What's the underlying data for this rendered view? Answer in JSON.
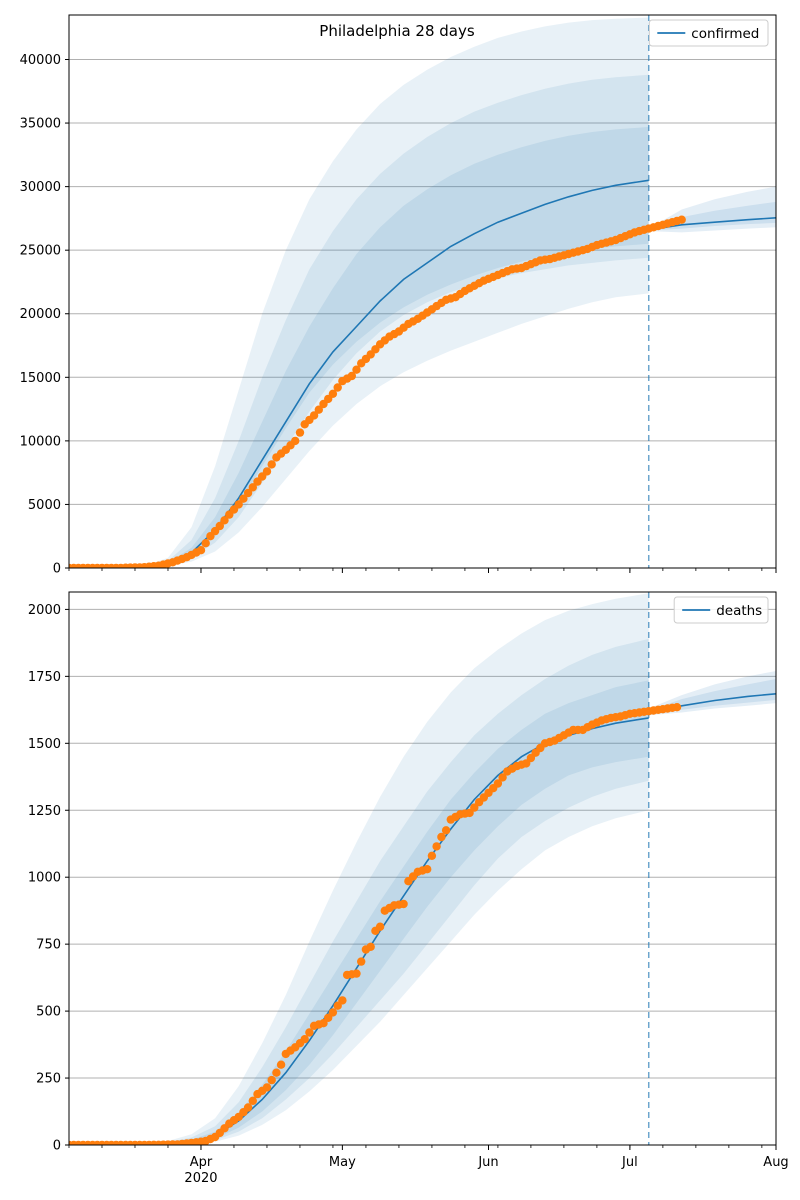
{
  "title": "Philadelphia 28 days",
  "colors": {
    "model": "#1f77b4",
    "observed": "#ff7f0e",
    "band": "#1f77b4",
    "grid": "#b0b0b0"
  },
  "x_axis": {
    "start": "2020-03-04",
    "end": "2020-08-01",
    "forecast_start": "2020-07-05",
    "month_ticks": [
      {
        "date": "2020-04-01",
        "label": "Apr",
        "sublabel": "2020"
      },
      {
        "date": "2020-05-01",
        "label": "May",
        "sublabel": ""
      },
      {
        "date": "2020-06-01",
        "label": "Jun",
        "sublabel": ""
      },
      {
        "date": "2020-07-01",
        "label": "Jul",
        "sublabel": ""
      },
      {
        "date": "2020-08-01",
        "label": "Aug",
        "sublabel": ""
      }
    ]
  },
  "chart_data": [
    {
      "type": "line",
      "legend": "confirmed",
      "legend_position": "top-right",
      "grid": "y",
      "ylim": [
        0,
        43500
      ],
      "yticks": [
        0,
        5000,
        10000,
        15000,
        20000,
        25000,
        30000,
        35000,
        40000
      ],
      "model_median": [
        [
          "2020-03-04",
          10
        ],
        [
          "2020-03-20",
          80
        ],
        [
          "2020-03-25",
          350
        ],
        [
          "2020-03-30",
          1200
        ],
        [
          "2020-04-04",
          3000
        ],
        [
          "2020-04-09",
          5500
        ],
        [
          "2020-04-14",
          8500
        ],
        [
          "2020-04-19",
          11500
        ],
        [
          "2020-04-24",
          14500
        ],
        [
          "2020-04-29",
          17000
        ],
        [
          "2020-05-04",
          19000
        ],
        [
          "2020-05-09",
          21000
        ],
        [
          "2020-05-14",
          22700
        ],
        [
          "2020-05-19",
          24000
        ],
        [
          "2020-05-24",
          25300
        ],
        [
          "2020-05-29",
          26300
        ],
        [
          "2020-06-03",
          27200
        ],
        [
          "2020-06-08",
          27900
        ],
        [
          "2020-06-13",
          28600
        ],
        [
          "2020-06-18",
          29200
        ],
        [
          "2020-06-23",
          29700
        ],
        [
          "2020-06-28",
          30100
        ],
        [
          "2020-07-05",
          30500
        ]
      ],
      "forecast_median": [
        [
          "2020-07-05",
          26600
        ],
        [
          "2020-07-12",
          27000
        ],
        [
          "2020-07-19",
          27200
        ],
        [
          "2020-07-26",
          27400
        ],
        [
          "2020-08-01",
          27550
        ]
      ],
      "fit_bands": {
        "dates": [
          "2020-03-04",
          "2020-03-20",
          "2020-03-25",
          "2020-03-30",
          "2020-04-04",
          "2020-04-09",
          "2020-04-14",
          "2020-04-19",
          "2020-04-24",
          "2020-04-29",
          "2020-05-04",
          "2020-05-09",
          "2020-05-14",
          "2020-05-19",
          "2020-05-24",
          "2020-05-29",
          "2020-06-03",
          "2020-06-08",
          "2020-06-13",
          "2020-06-18",
          "2020-06-23",
          "2020-06-28",
          "2020-07-05"
        ],
        "outer_upper": [
          20,
          150,
          800,
          3200,
          8000,
          14000,
          20000,
          25000,
          29000,
          32000,
          34500,
          36500,
          38000,
          39200,
          40200,
          41000,
          41700,
          42200,
          42600,
          42900,
          43100,
          43200,
          43300
        ],
        "outer_lower": [
          5,
          40,
          150,
          500,
          1300,
          2800,
          4800,
          7000,
          9200,
          11200,
          12900,
          14300,
          15400,
          16300,
          17100,
          17800,
          18500,
          19200,
          19800,
          20400,
          20900,
          21300,
          21600
        ],
        "middle_upper": [
          15,
          110,
          550,
          2200,
          5500,
          10000,
          15000,
          19500,
          23500,
          26500,
          29000,
          31000,
          32600,
          33900,
          35000,
          35900,
          36600,
          37200,
          37700,
          38100,
          38400,
          38600,
          38800
        ],
        "middle_lower": [
          8,
          55,
          230,
          800,
          2000,
          4000,
          6700,
          9500,
          12300,
          14800,
          16900,
          18600,
          19900,
          20900,
          21700,
          22300,
          22800,
          23200,
          23500,
          23800,
          24000,
          24200,
          24400
        ],
        "inner_upper": [
          12,
          90,
          420,
          1600,
          4000,
          7500,
          11500,
          15500,
          19000,
          22000,
          24700,
          26800,
          28500,
          29800,
          30900,
          31800,
          32500,
          33100,
          33600,
          34000,
          34300,
          34500,
          34700
        ],
        "inner_lower": [
          9,
          65,
          290,
          1000,
          2500,
          5000,
          8000,
          11000,
          13800,
          16000,
          17800,
          19300,
          20500,
          21500,
          22300,
          23000,
          23600,
          24100,
          24500,
          24800,
          25100,
          25300,
          25500
        ]
      },
      "forecast_bands": {
        "dates": [
          "2020-07-05",
          "2020-07-12",
          "2020-07-19",
          "2020-07-26",
          "2020-08-01"
        ],
        "outer_upper": [
          26700,
          28200,
          29000,
          29600,
          30000
        ],
        "outer_lower": [
          26500,
          26400,
          26550,
          26700,
          26800
        ],
        "inner_upper": [
          26650,
          27600,
          28100,
          28500,
          28800
        ],
        "inner_lower": [
          26550,
          26700,
          26900,
          27050,
          27150
        ]
      },
      "observed": [
        [
          "2020-03-04",
          0
        ],
        [
          "2020-03-10",
          0
        ],
        [
          "2020-03-15",
          10
        ],
        [
          "2020-03-20",
          60
        ],
        [
          "2020-03-23",
          180
        ],
        [
          "2020-03-26",
          450
        ],
        [
          "2020-03-29",
          850
        ],
        [
          "2020-04-01",
          1400
        ],
        [
          "2020-04-03",
          2500
        ],
        [
          "2020-04-05",
          3300
        ],
        [
          "2020-04-07",
          4200
        ],
        [
          "2020-04-09",
          5000
        ],
        [
          "2020-04-11",
          5900
        ],
        [
          "2020-04-13",
          6800
        ],
        [
          "2020-04-15",
          7600
        ],
        [
          "2020-04-17",
          8700
        ],
        [
          "2020-04-19",
          9300
        ],
        [
          "2020-04-21",
          10000
        ],
        [
          "2020-04-23",
          11300
        ],
        [
          "2020-04-25",
          12000
        ],
        [
          "2020-04-27",
          12900
        ],
        [
          "2020-04-29",
          13700
        ],
        [
          "2020-05-01",
          14700
        ],
        [
          "2020-05-03",
          15100
        ],
        [
          "2020-05-05",
          16100
        ],
        [
          "2020-05-07",
          16800
        ],
        [
          "2020-05-09",
          17600
        ],
        [
          "2020-05-11",
          18200
        ],
        [
          "2020-05-13",
          18600
        ],
        [
          "2020-05-15",
          19200
        ],
        [
          "2020-05-17",
          19600
        ],
        [
          "2020-05-19",
          20100
        ],
        [
          "2020-05-21",
          20600
        ],
        [
          "2020-05-23",
          21100
        ],
        [
          "2020-05-25",
          21300
        ],
        [
          "2020-05-27",
          21800
        ],
        [
          "2020-05-29",
          22200
        ],
        [
          "2020-05-31",
          22600
        ],
        [
          "2020-06-02",
          22900
        ],
        [
          "2020-06-04",
          23200
        ],
        [
          "2020-06-06",
          23500
        ],
        [
          "2020-06-08",
          23600
        ],
        [
          "2020-06-10",
          23900
        ],
        [
          "2020-06-12",
          24200
        ],
        [
          "2020-06-14",
          24300
        ],
        [
          "2020-06-16",
          24500
        ],
        [
          "2020-06-18",
          24700
        ],
        [
          "2020-06-20",
          24900
        ],
        [
          "2020-06-22",
          25100
        ],
        [
          "2020-06-24",
          25400
        ],
        [
          "2020-06-26",
          25600
        ],
        [
          "2020-06-28",
          25800
        ],
        [
          "2020-06-30",
          26100
        ],
        [
          "2020-07-02",
          26400
        ],
        [
          "2020-07-04",
          26600
        ],
        [
          "2020-07-06",
          26800
        ],
        [
          "2020-07-08",
          27000
        ],
        [
          "2020-07-10",
          27200
        ],
        [
          "2020-07-12",
          27400
        ]
      ]
    },
    {
      "type": "line",
      "legend": "deaths",
      "legend_position": "top-right",
      "grid": "y",
      "ylim": [
        0,
        2065
      ],
      "yticks": [
        0,
        250,
        500,
        750,
        1000,
        1250,
        1500,
        1750,
        2000
      ],
      "model_median": [
        [
          "2020-03-04",
          0
        ],
        [
          "2020-03-25",
          5
        ],
        [
          "2020-03-30",
          12
        ],
        [
          "2020-04-04",
          35
        ],
        [
          "2020-04-09",
          90
        ],
        [
          "2020-04-14",
          170
        ],
        [
          "2020-04-19",
          270
        ],
        [
          "2020-04-24",
          390
        ],
        [
          "2020-04-29",
          520
        ],
        [
          "2020-05-04",
          660
        ],
        [
          "2020-05-09",
          800
        ],
        [
          "2020-05-14",
          930
        ],
        [
          "2020-05-19",
          1060
        ],
        [
          "2020-05-24",
          1180
        ],
        [
          "2020-05-29",
          1290
        ],
        [
          "2020-06-03",
          1380
        ],
        [
          "2020-06-08",
          1450
        ],
        [
          "2020-06-13",
          1500
        ],
        [
          "2020-06-18",
          1530
        ],
        [
          "2020-06-23",
          1555
        ],
        [
          "2020-06-28",
          1575
        ],
        [
          "2020-07-05",
          1595
        ]
      ],
      "forecast_median": [
        [
          "2020-07-05",
          1615
        ],
        [
          "2020-07-12",
          1640
        ],
        [
          "2020-07-19",
          1660
        ],
        [
          "2020-07-26",
          1675
        ],
        [
          "2020-08-01",
          1685
        ]
      ],
      "fit_bands": {
        "dates": [
          "2020-03-04",
          "2020-03-25",
          "2020-03-30",
          "2020-04-04",
          "2020-04-09",
          "2020-04-14",
          "2020-04-19",
          "2020-04-24",
          "2020-04-29",
          "2020-05-04",
          "2020-05-09",
          "2020-05-14",
          "2020-05-19",
          "2020-05-24",
          "2020-05-29",
          "2020-06-03",
          "2020-06-08",
          "2020-06-13",
          "2020-06-18",
          "2020-06-23",
          "2020-06-28",
          "2020-07-05"
        ],
        "outer_upper": [
          0,
          15,
          40,
          100,
          220,
          380,
          560,
          760,
          950,
          1130,
          1300,
          1450,
          1580,
          1690,
          1780,
          1850,
          1910,
          1960,
          1995,
          2020,
          2040,
          2060
        ],
        "outer_lower": [
          0,
          2,
          5,
          12,
          35,
          75,
          130,
          200,
          280,
          370,
          460,
          560,
          660,
          760,
          860,
          950,
          1030,
          1100,
          1150,
          1190,
          1220,
          1250
        ],
        "middle_upper": [
          0,
          11,
          28,
          70,
          160,
          290,
          440,
          600,
          760,
          910,
          1060,
          1190,
          1320,
          1430,
          1530,
          1610,
          1680,
          1740,
          1790,
          1830,
          1860,
          1890
        ],
        "middle_lower": [
          0,
          3,
          7,
          18,
          50,
          100,
          170,
          250,
          340,
          440,
          540,
          640,
          750,
          860,
          970,
          1070,
          1150,
          1210,
          1260,
          1300,
          1330,
          1360
        ],
        "inner_upper": [
          0,
          8,
          20,
          50,
          120,
          225,
          350,
          490,
          630,
          770,
          910,
          1040,
          1170,
          1290,
          1390,
          1480,
          1550,
          1610,
          1650,
          1680,
          1710,
          1735
        ],
        "inner_lower": [
          0,
          4,
          9,
          24,
          65,
          125,
          205,
          300,
          410,
          530,
          650,
          770,
          890,
          1000,
          1100,
          1190,
          1270,
          1330,
          1380,
          1410,
          1430,
          1450
        ]
      },
      "forecast_bands": {
        "dates": [
          "2020-07-05",
          "2020-07-12",
          "2020-07-19",
          "2020-07-26",
          "2020-08-01"
        ],
        "outer_upper": [
          1630,
          1680,
          1720,
          1750,
          1770
        ],
        "outer_lower": [
          1605,
          1615,
          1630,
          1640,
          1650
        ],
        "inner_upper": [
          1622,
          1665,
          1695,
          1720,
          1740
        ],
        "inner_lower": [
          1610,
          1625,
          1640,
          1652,
          1662
        ]
      },
      "observed": [
        [
          "2020-03-04",
          0
        ],
        [
          "2020-03-20",
          0
        ],
        [
          "2020-03-27",
          2
        ],
        [
          "2020-03-31",
          10
        ],
        [
          "2020-04-02",
          15
        ],
        [
          "2020-04-04",
          30
        ],
        [
          "2020-04-05",
          45
        ],
        [
          "2020-04-07",
          80
        ],
        [
          "2020-04-09",
          105
        ],
        [
          "2020-04-11",
          140
        ],
        [
          "2020-04-13",
          190
        ],
        [
          "2020-04-15",
          215
        ],
        [
          "2020-04-17",
          270
        ],
        [
          "2020-04-18",
          300
        ],
        [
          "2020-04-19",
          340
        ],
        [
          "2020-04-21",
          365
        ],
        [
          "2020-04-23",
          395
        ],
        [
          "2020-04-25",
          445
        ],
        [
          "2020-04-27",
          455
        ],
        [
          "2020-04-29",
          495
        ],
        [
          "2020-04-30",
          520
        ],
        [
          "2020-05-01",
          540
        ],
        [
          "2020-05-02",
          635
        ],
        [
          "2020-05-04",
          640
        ],
        [
          "2020-05-06",
          730
        ],
        [
          "2020-05-07",
          740
        ],
        [
          "2020-05-08",
          800
        ],
        [
          "2020-05-09",
          815
        ],
        [
          "2020-05-10",
          875
        ],
        [
          "2020-05-12",
          895
        ],
        [
          "2020-05-14",
          900
        ],
        [
          "2020-05-15",
          985
        ],
        [
          "2020-05-17",
          1020
        ],
        [
          "2020-05-19",
          1030
        ],
        [
          "2020-05-20",
          1080
        ],
        [
          "2020-05-22",
          1150
        ],
        [
          "2020-05-23",
          1175
        ],
        [
          "2020-05-24",
          1215
        ],
        [
          "2020-05-26",
          1235
        ],
        [
          "2020-05-28",
          1240
        ],
        [
          "2020-05-30",
          1280
        ],
        [
          "2020-06-01",
          1315
        ],
        [
          "2020-06-03",
          1350
        ],
        [
          "2020-06-05",
          1395
        ],
        [
          "2020-06-07",
          1415
        ],
        [
          "2020-06-09",
          1425
        ],
        [
          "2020-06-11",
          1465
        ],
        [
          "2020-06-13",
          1500
        ],
        [
          "2020-06-15",
          1510
        ],
        [
          "2020-06-17",
          1530
        ],
        [
          "2020-06-19",
          1550
        ],
        [
          "2020-06-21",
          1550
        ],
        [
          "2020-06-23",
          1570
        ],
        [
          "2020-06-25",
          1585
        ],
        [
          "2020-06-27",
          1595
        ],
        [
          "2020-06-29",
          1600
        ],
        [
          "2020-07-01",
          1610
        ],
        [
          "2020-07-03",
          1615
        ],
        [
          "2020-07-05",
          1620
        ],
        [
          "2020-07-07",
          1625
        ],
        [
          "2020-07-09",
          1630
        ],
        [
          "2020-07-11",
          1635
        ]
      ]
    }
  ]
}
